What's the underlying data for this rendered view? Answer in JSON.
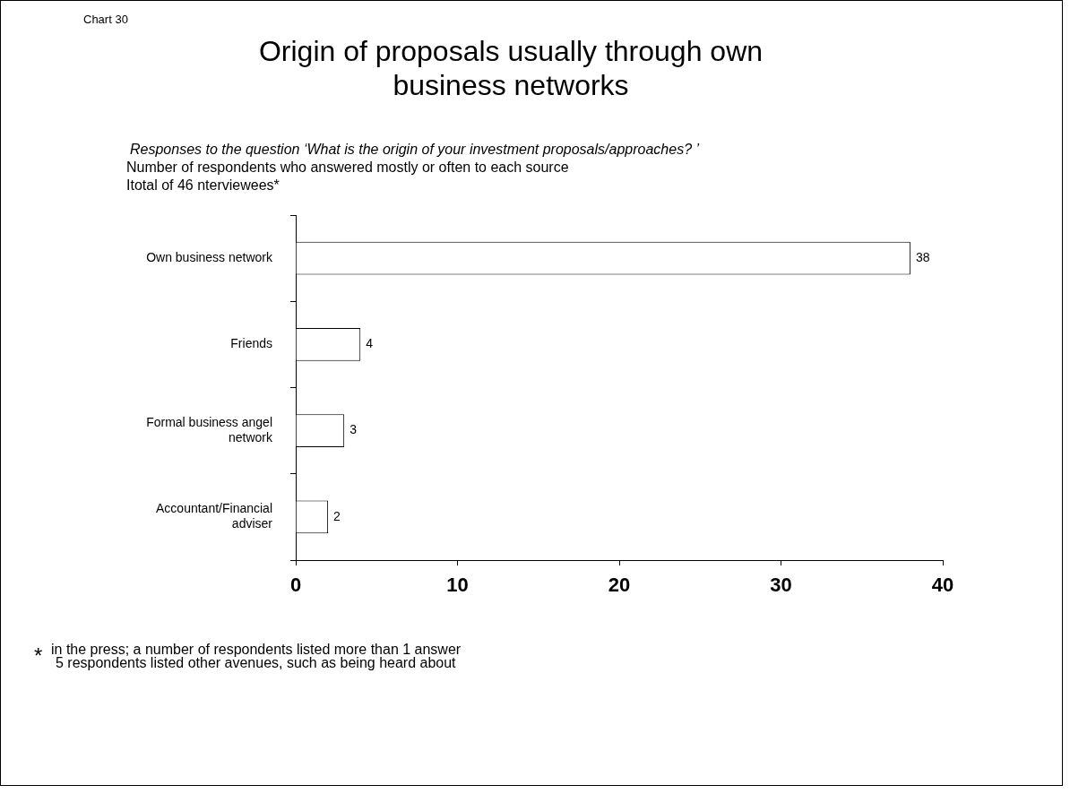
{
  "chart_data": {
    "type": "bar",
    "orientation": "horizontal",
    "title": "Origin of proposals usually through own business networks",
    "subtitle": "Responses to the question   ‘What is the origin of your investment proposals/approaches?       ’",
    "categories": [
      "Own business network",
      "Friends",
      "Formal business angel network",
      "Accountant/Financial adviser"
    ],
    "values": [
      38,
      4,
      3,
      2
    ],
    "color": "#ffffff",
    "xlim": [
      0,
      40
    ],
    "xticks": [
      0,
      10,
      20,
      30,
      40
    ],
    "grid": false,
    "legend": false,
    "data_labels": true,
    "annotations": [
      "Chart 30",
      "Number of respondents who answered mostly or often to each source",
      "Itotal of 46 nterviewees*",
      "*",
      "in the press; a number of respondents listed more than 1 answer",
      "5 respondents listed other avenues, such as being heard about"
    ]
  }
}
